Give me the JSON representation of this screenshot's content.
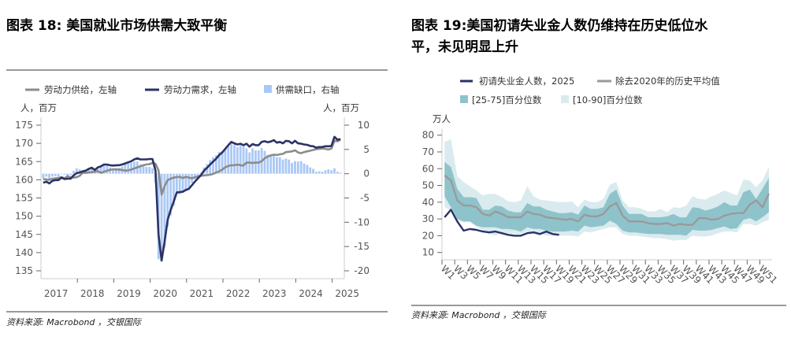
{
  "charts_meta": {
    "left_title": "图表 18: 美国就业市场供需大致平衡",
    "left_source": "资料来源: Macrobond ，交银国际",
    "right_title_line1": "图表 19:美国初请失业金人数仍维持在历史低位水",
    "right_title_line2": "平，未见明显上升",
    "right_source": "资料来源: Macrobond ，交银国际"
  },
  "chart_data": [
    {
      "type": "line",
      "title": "图表 18: 美国就业市场供需大致平衡",
      "ylabel_left": "人，百万",
      "ylabel_right": "人，百万",
      "ylim_left": [
        135,
        175
      ],
      "yticks_left": [
        "175",
        "170",
        "165",
        "160",
        "155",
        "150",
        "145",
        "140",
        "135"
      ],
      "ylim_right": [
        -20,
        10
      ],
      "yticks_right": [
        "10",
        "5",
        "0",
        "-5",
        "-10",
        "-15",
        "-20"
      ],
      "xlabels": [
        "2017",
        "2018",
        "2019",
        "2020",
        "2021",
        "2022",
        "2023",
        "2024",
        "2025"
      ],
      "x_start": "2017-01",
      "x_frequency": "monthly",
      "legend_position": "top",
      "grid": false,
      "colors": {
        "supply": "#8c8c8c",
        "demand": "#2b3266",
        "gap": "#aac8f5"
      },
      "series": [
        {
          "name": "劳动力供给，左轴",
          "axis": "left",
          "kind": "line",
          "values": [
            160.2,
            160.1,
            160.0,
            160.3,
            160.4,
            160.5,
            160.7,
            160.4,
            161.0,
            160.6,
            160.6,
            160.7,
            161.1,
            161.9,
            161.9,
            162.0,
            162.1,
            162.2,
            162.4,
            161.9,
            162.2,
            162.5,
            162.7,
            162.9,
            162.8,
            162.8,
            162.7,
            162.5,
            162.6,
            162.8,
            163.1,
            163.4,
            163.7,
            164.0,
            164.2,
            164.3,
            164.6,
            164.4,
            162.6,
            155.9,
            158.2,
            159.9,
            160.3,
            160.6,
            160.7,
            160.8,
            160.5,
            160.8,
            160.6,
            160.4,
            160.7,
            160.9,
            161.1,
            161.2,
            161.3,
            161.4,
            161.6,
            162.0,
            162.3,
            162.8,
            163.4,
            163.8,
            164.0,
            164.0,
            164.2,
            164.0,
            163.9,
            164.7,
            164.7,
            164.6,
            164.7,
            164.7,
            165.1,
            165.9,
            166.4,
            166.7,
            166.9,
            166.8,
            167.0,
            167.1,
            167.6,
            167.7,
            167.8,
            168.1,
            167.5,
            167.3,
            167.6,
            167.8,
            168.0,
            168.2,
            168.4,
            168.5,
            168.6,
            168.5,
            168.3,
            168.6,
            170.7,
            170.6,
            171.0
          ]
        },
        {
          "name": "劳动力需求，左轴",
          "axis": "left",
          "kind": "line",
          "values": [
            159.2,
            159.5,
            159.0,
            159.7,
            159.9,
            159.9,
            160.6,
            160.2,
            160.3,
            160.3,
            161.2,
            161.8,
            162.0,
            162.3,
            162.5,
            163.0,
            163.3,
            162.7,
            163.4,
            163.7,
            164.2,
            164.2,
            164.0,
            163.9,
            164.0,
            164.0,
            164.2,
            164.5,
            164.8,
            165.1,
            165.6,
            165.9,
            165.6,
            165.6,
            165.6,
            165.7,
            165.7,
            162.5,
            145.0,
            137.8,
            143.0,
            149.0,
            151.7,
            154.0,
            156.5,
            156.6,
            156.7,
            157.2,
            157.5,
            158.5,
            159.5,
            160.4,
            161.3,
            162.5,
            163.3,
            164.2,
            165.0,
            165.8,
            166.8,
            167.5,
            168.5,
            169.5,
            170.4,
            170.0,
            169.7,
            169.9,
            169.5,
            169.9,
            169.1,
            169.8,
            169.5,
            169.5,
            170.4,
            170.6,
            170.3,
            170.5,
            170.9,
            170.2,
            170.4,
            170.0,
            170.7,
            170.6,
            170.0,
            170.7,
            170.0,
            169.9,
            169.7,
            169.6,
            169.3,
            169.2,
            168.8,
            169.0,
            169.0,
            169.2,
            169.2,
            169.3,
            171.8,
            171.0,
            171.2
          ]
        },
        {
          "name": "供需缺口，右轴",
          "axis": "right",
          "kind": "bar",
          "values": [
            -1.0,
            -0.6,
            -1.0,
            -0.6,
            -0.5,
            -0.6,
            -0.1,
            -0.2,
            -0.7,
            -0.3,
            0.6,
            1.1,
            0.9,
            0.4,
            0.6,
            1.0,
            1.2,
            0.5,
            1.0,
            1.8,
            2.0,
            1.7,
            1.3,
            1.0,
            1.2,
            1.2,
            1.5,
            2.0,
            2.2,
            2.3,
            2.5,
            2.5,
            1.9,
            1.6,
            1.4,
            1.4,
            1.1,
            -1.9,
            -17.6,
            -18.1,
            -15.2,
            -10.9,
            -8.6,
            -6.6,
            -4.2,
            -4.2,
            -3.8,
            -3.6,
            -3.1,
            -1.9,
            -1.2,
            -0.5,
            0.2,
            1.3,
            2.0,
            2.8,
            3.4,
            3.8,
            4.5,
            4.7,
            5.1,
            5.7,
            6.4,
            6.0,
            5.5,
            5.9,
            5.6,
            5.2,
            4.4,
            5.2,
            4.8,
            4.8,
            5.3,
            4.7,
            3.9,
            3.8,
            4.0,
            3.4,
            3.4,
            2.9,
            3.1,
            2.9,
            2.2,
            2.6,
            2.5,
            2.6,
            2.1,
            1.8,
            1.3,
            1.0,
            0.4,
            0.5,
            0.4,
            0.7,
            0.9,
            0.7,
            1.1,
            0.4,
            0.2
          ]
        }
      ]
    },
    {
      "type": "area",
      "title": "图表 19:美国初请失业金人数仍维持在历史低位水平，未见明显上升",
      "ylabel": "万人",
      "ylim": [
        10,
        80
      ],
      "yticks": [
        "80",
        "70",
        "60",
        "50",
        "40",
        "30",
        "20",
        "10"
      ],
      "xlabels": [
        "W1",
        "W3",
        "W5",
        "W7",
        "W9",
        "W11",
        "W13",
        "W15",
        "W17",
        "W19",
        "W21",
        "W23",
        "W25",
        "W27",
        "W29",
        "W31",
        "W33",
        "W35",
        "W37",
        "W39",
        "W41",
        "W43",
        "W45",
        "W47",
        "W49",
        "W51"
      ],
      "weeks": 52,
      "legend_position": "top",
      "grid": false,
      "colors": {
        "y2025": "#2b3266",
        "mean": "#9a9a9a",
        "band25_75": "#8fc3cb",
        "band10_90": "#d9ebee"
      },
      "series": [
        {
          "name": "初请失业金人数，2025",
          "kind": "line",
          "values": [
            31,
            35.5,
            28.5,
            23,
            24,
            23.5,
            22.5,
            22,
            22.5,
            21.5,
            20.5,
            20,
            20,
            21.5,
            22,
            21,
            22.5,
            21,
            20.5
          ]
        },
        {
          "name": "除去2020年的历史平均值",
          "kind": "line",
          "values": [
            56,
            53,
            41,
            38,
            38,
            37,
            33,
            32,
            34.5,
            33,
            31,
            31,
            31,
            34.5,
            33,
            32.5,
            31,
            30.5,
            30,
            29.5,
            30,
            28.5,
            32.5,
            31.5,
            31.5,
            33,
            37.5,
            39.5,
            32,
            28.5,
            28.5,
            28.5,
            27.5,
            27,
            27,
            27.5,
            26,
            27,
            26.5,
            26.5,
            30.5,
            30.5,
            29.5,
            30,
            32,
            33,
            33.5,
            33.5,
            38.5,
            41,
            37,
            45
          ]
        },
        {
          "name": "[25-75]百分位数",
          "kind": "band",
          "low": [
            43.5,
            37,
            30,
            28.5,
            28.5,
            26,
            25,
            25,
            25,
            24,
            24,
            23.5,
            22.5,
            25,
            24,
            24,
            23,
            22.5,
            22.5,
            22.5,
            23,
            22.5,
            26,
            25,
            25.5,
            26,
            29,
            27,
            23,
            22,
            22,
            21.5,
            21,
            21,
            21,
            20.5,
            20.5,
            20.5,
            20,
            23.5,
            23,
            23,
            23.5,
            24.5,
            25.5,
            24,
            24.5,
            29.5,
            30.5,
            28.5,
            31,
            34
          ],
          "high": [
            64,
            61,
            48,
            43,
            43,
            42.5,
            35.5,
            35.5,
            38,
            37.5,
            35,
            34,
            34,
            39.5,
            37.5,
            37.5,
            35.5,
            34.5,
            33.5,
            33.5,
            34,
            32.5,
            38,
            36,
            36,
            37,
            45,
            47.5,
            38,
            33,
            33,
            33,
            31,
            31,
            31,
            31.5,
            33,
            31,
            31,
            37,
            36.5,
            35,
            36,
            37.5,
            40,
            38,
            38,
            46,
            47.5,
            42,
            48,
            54.5
          ]
        },
        {
          "name": "[10-90]百分位数",
          "kind": "band",
          "low": [
            37,
            35,
            29,
            28,
            28,
            25.5,
            23,
            21,
            20,
            22,
            21.5,
            21,
            21,
            22.5,
            21.5,
            21.5,
            20,
            20,
            20,
            20,
            20,
            19.5,
            22.5,
            22,
            23,
            24,
            25,
            25,
            21,
            20,
            20,
            19.5,
            19,
            18.5,
            18.5,
            18,
            17,
            17.5,
            17.5,
            20,
            19.5,
            19.5,
            20,
            21.5,
            22.5,
            22.5,
            22,
            27,
            27,
            26,
            28,
            29.5
          ],
          "high": [
            76,
            77.5,
            55.5,
            52,
            49.5,
            47,
            44,
            45,
            45,
            43,
            40.5,
            40,
            41,
            49.5,
            43.5,
            41.5,
            41,
            40.5,
            40,
            40,
            40.5,
            37,
            41.5,
            40,
            40,
            42,
            50.5,
            52,
            41,
            37,
            37,
            36,
            34.5,
            34.5,
            36,
            34,
            37,
            36.5,
            38,
            43.5,
            42,
            41.5,
            43.5,
            45,
            47,
            45.5,
            44,
            53.5,
            53,
            49,
            53,
            61
          ]
        }
      ]
    }
  ]
}
